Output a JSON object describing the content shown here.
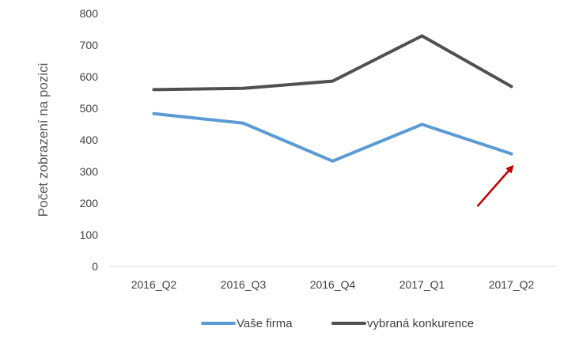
{
  "chart_data": {
    "type": "line",
    "categories": [
      "2016_Q2",
      "2016_Q3",
      "2016_Q4",
      "2017_Q1",
      "2017_Q2"
    ],
    "series": [
      {
        "name": "Vaše firma",
        "color": "#5b9bd5",
        "values": [
          483,
          453,
          333,
          449,
          356
        ]
      },
      {
        "name": "vybraná konkurence",
        "color": "#505050",
        "values": [
          559,
          563,
          586,
          729,
          569
        ]
      }
    ],
    "title": "",
    "xlabel": "",
    "ylabel": "Počet zobrazení na pozici",
    "ylim": [
      0,
      800
    ],
    "yticks": [
      0,
      100,
      200,
      300,
      400,
      500,
      600,
      700,
      800
    ],
    "grid": false,
    "legend_position": "bottom",
    "annotation": {
      "type": "arrow",
      "color": "#c00000",
      "from_category": "2017_Q2",
      "from_value": 190,
      "to_category": "2017_Q2",
      "to_value": 315
    }
  }
}
